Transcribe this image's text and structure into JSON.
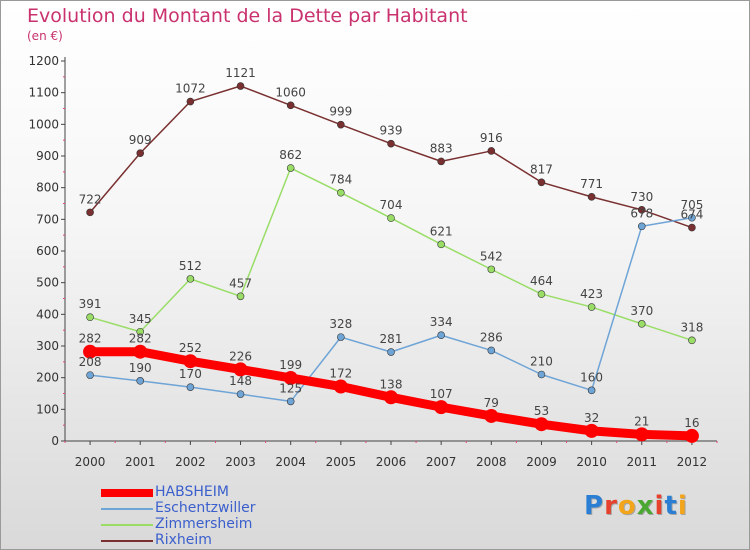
{
  "header": {
    "title": "Evolution du Montant de la Dette par Habitant",
    "subtitle": "(en €)"
  },
  "brand": {
    "letters": [
      "P",
      "r",
      "o",
      "x",
      "i",
      "t",
      "i"
    ],
    "colors": [
      "#2a7fd4",
      "#e5412c",
      "#f2a41a",
      "#4aa832",
      "#e5412c",
      "#2a7fd4",
      "#f2a41a"
    ]
  },
  "chart_data": {
    "type": "line",
    "x": [
      "2000",
      "2001",
      "2002",
      "2003",
      "2004",
      "2005",
      "2006",
      "2007",
      "2008",
      "2009",
      "2010",
      "2011",
      "2012"
    ],
    "ylim": [
      0,
      1200
    ],
    "yticks": [
      "0",
      "100",
      "200",
      "300",
      "400",
      "500",
      "600",
      "700",
      "800",
      "900",
      "1000",
      "1100",
      "1200"
    ],
    "grid": false,
    "legend_position": "bottom-left",
    "title": "Evolution du Montant de la Dette par Habitant",
    "ylabel": "(en €)",
    "series": [
      {
        "name": "HABSHEIM",
        "color": "#ff0000",
        "values": [
          282,
          282,
          252,
          226,
          199,
          172,
          138,
          107,
          79,
          53,
          32,
          21,
          16
        ],
        "labels": [
          "282",
          "282",
          "252",
          "226",
          "199",
          "172",
          "138",
          "107",
          "79",
          "53",
          "32",
          "21",
          "16"
        ]
      },
      {
        "name": "Eschentzwiller",
        "color": "#6fa4d6",
        "values": [
          208,
          190,
          170,
          148,
          125,
          328,
          281,
          334,
          286,
          210,
          160,
          678,
          705
        ],
        "labels": [
          "208",
          "190",
          "170",
          "148",
          "125",
          "328",
          "281",
          "334",
          "286",
          "210",
          "160",
          "678",
          "705"
        ]
      },
      {
        "name": "Zimmersheim",
        "color": "#99dd66",
        "values": [
          391,
          345,
          512,
          457,
          862,
          784,
          704,
          621,
          542,
          464,
          423,
          370,
          318
        ],
        "labels": [
          "391",
          "345",
          "512",
          "457",
          "862",
          "784",
          "704",
          "621",
          "542",
          "464",
          "423",
          "370",
          "318"
        ]
      },
      {
        "name": "Rixheim",
        "color": "#7a3030",
        "values": [
          722,
          909,
          1072,
          1121,
          1060,
          999,
          939,
          883,
          916,
          817,
          771,
          730,
          674
        ],
        "labels": [
          "722",
          "909",
          "1072",
          "1121",
          "1060",
          "999",
          "939",
          "883",
          "916",
          "817",
          "771",
          "730",
          "674"
        ]
      }
    ]
  }
}
